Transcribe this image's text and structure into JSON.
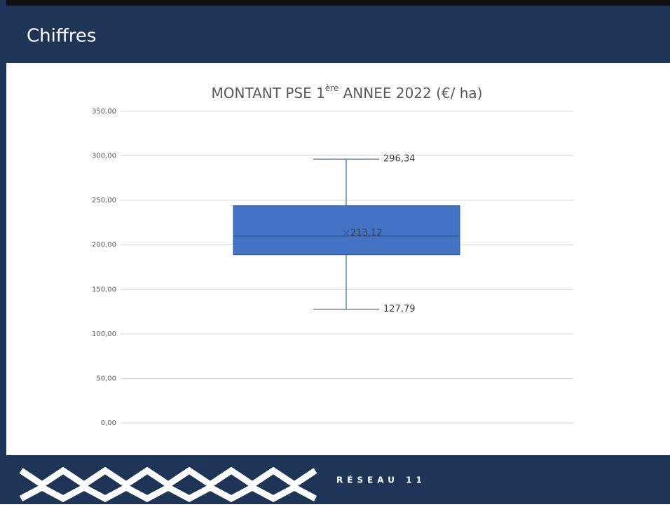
{
  "header": {
    "title": "Chiffres"
  },
  "chart_data": {
    "type": "box",
    "title": [
      "MONTANT PSE 1",
      "ère",
      " ANNEE 2022 (€/ ha)"
    ],
    "box": {
      "min": 127.79,
      "q1": 189,
      "median": 210,
      "q3": 244,
      "max": 296.34,
      "mean": 213.12
    },
    "value_labels": {
      "max": "296,34",
      "mean": "213,12",
      "min": "127,79"
    },
    "color": "#4472c4",
    "ylim": [
      0,
      350
    ],
    "yticks": [
      {
        "value": 0,
        "label": "0,00"
      },
      {
        "value": 50,
        "label": "50,00"
      },
      {
        "value": 100,
        "label": "100,00"
      },
      {
        "value": 150,
        "label": "150,00"
      },
      {
        "value": 200,
        "label": "200,00"
      },
      {
        "value": 250,
        "label": "250,00"
      },
      {
        "value": 300,
        "label": "300,00"
      },
      {
        "value": 350,
        "label": "350,00"
      }
    ],
    "grid": true
  },
  "footer": {
    "logo_text": "RÉSEAU 11"
  }
}
